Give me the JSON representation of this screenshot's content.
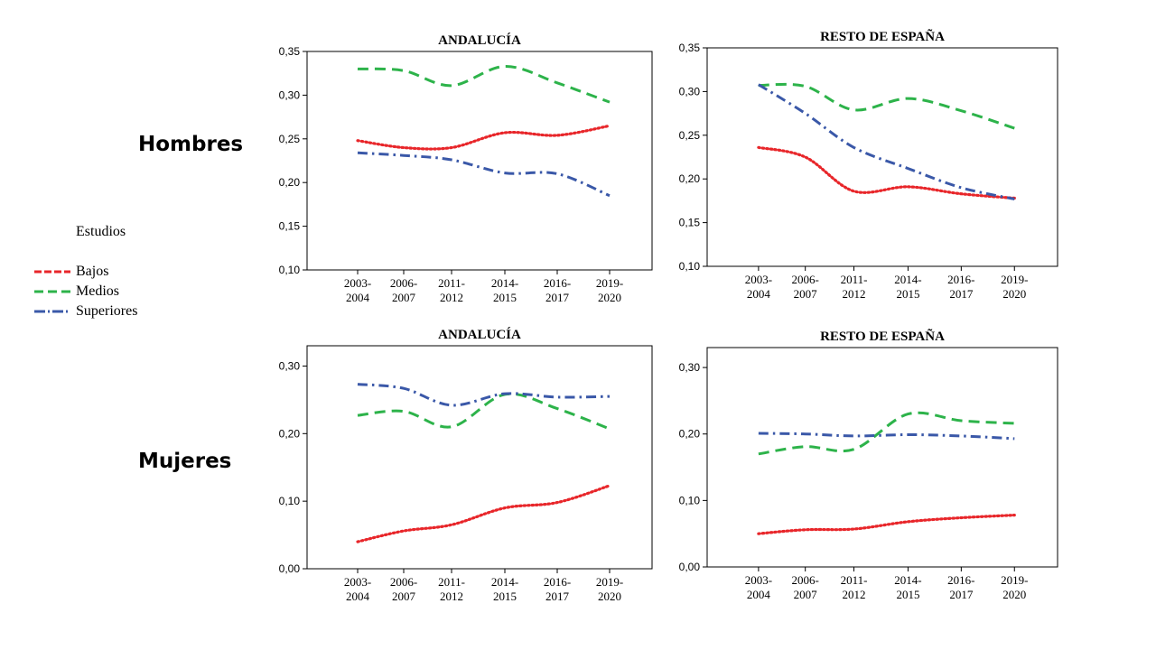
{
  "row_labels": [
    "Hombres",
    "Mujeres"
  ],
  "legend": {
    "title": "Estudios",
    "position": "left",
    "items": [
      {
        "label": "Bajos",
        "color": "#e8262a",
        "dash": "dotted"
      },
      {
        "label": "Medios",
        "color": "#2db34a",
        "dash": "dashed"
      },
      {
        "label": "Superiores",
        "color": "#3a58a8",
        "dash": "dash-dot"
      }
    ]
  },
  "chart_data": [
    {
      "type": "line",
      "title": "ANDALUCÍA",
      "categories": [
        [
          "2003-",
          "2004"
        ],
        [
          "2006-",
          "2007"
        ],
        [
          "2011-",
          "2012"
        ],
        [
          "2014-",
          "2015"
        ],
        [
          "2016-",
          "2017"
        ],
        [
          "2019-",
          "2020"
        ]
      ],
      "ylim": [
        0.1,
        0.35
      ],
      "yticks": [
        "0,10",
        "0,15",
        "0,20",
        "0,25",
        "0,30",
        "0,35"
      ],
      "grid": false,
      "series": [
        {
          "name": "Bajos",
          "values": [
            0.248,
            0.24,
            0.24,
            0.257,
            0.254,
            0.265
          ]
        },
        {
          "name": "Medios",
          "values": [
            0.33,
            0.328,
            0.311,
            0.333,
            0.314,
            0.292
          ]
        },
        {
          "name": "Superiores",
          "values": [
            0.234,
            0.231,
            0.226,
            0.211,
            0.21,
            0.185
          ]
        }
      ]
    },
    {
      "type": "line",
      "title": "RESTO DE ESPAÑA",
      "categories": [
        [
          "2003-",
          "2004"
        ],
        [
          "2006-",
          "2007"
        ],
        [
          "2011-",
          "2012"
        ],
        [
          "2014-",
          "2015"
        ],
        [
          "2016-",
          "2017"
        ],
        [
          "2019-",
          "2020"
        ]
      ],
      "ylim": [
        0.1,
        0.35
      ],
      "yticks": [
        "0,10",
        "0,15",
        "0,20",
        "0,25",
        "0,30",
        "0,35"
      ],
      "grid": false,
      "series": [
        {
          "name": "Bajos",
          "values": [
            0.236,
            0.225,
            0.186,
            0.191,
            0.183,
            0.178
          ]
        },
        {
          "name": "Medios",
          "values": [
            0.307,
            0.306,
            0.279,
            0.292,
            0.278,
            0.258
          ]
        },
        {
          "name": "Superiores",
          "values": [
            0.308,
            0.275,
            0.236,
            0.212,
            0.19,
            0.177
          ]
        }
      ]
    },
    {
      "type": "line",
      "title": "ANDALUCÍA",
      "categories": [
        [
          "2003-",
          "2004"
        ],
        [
          "2006-",
          "2007"
        ],
        [
          "2011-",
          "2012"
        ],
        [
          "2014-",
          "2015"
        ],
        [
          "2016-",
          "2017"
        ],
        [
          "2019-",
          "2020"
        ]
      ],
      "ylim": [
        0.0,
        0.33
      ],
      "yticks": [
        "0,00",
        "0,10",
        "0,20",
        "0,30"
      ],
      "grid": false,
      "series": [
        {
          "name": "Bajos",
          "values": [
            0.04,
            0.056,
            0.065,
            0.09,
            0.098,
            0.123
          ]
        },
        {
          "name": "Medios",
          "values": [
            0.227,
            0.233,
            0.21,
            0.258,
            0.237,
            0.207
          ]
        },
        {
          "name": "Superiores",
          "values": [
            0.273,
            0.267,
            0.242,
            0.259,
            0.254,
            0.255
          ]
        }
      ]
    },
    {
      "type": "line",
      "title": "RESTO DE ESPAÑA",
      "categories": [
        [
          "2003-",
          "2004"
        ],
        [
          "2006-",
          "2007"
        ],
        [
          "2011-",
          "2012"
        ],
        [
          "2014-",
          "2015"
        ],
        [
          "2016-",
          "2017"
        ],
        [
          "2019-",
          "2020"
        ]
      ],
      "ylim": [
        0.0,
        0.33
      ],
      "yticks": [
        "0,00",
        "0,10",
        "0,20",
        "0,30"
      ],
      "grid": false,
      "series": [
        {
          "name": "Bajos",
          "values": [
            0.05,
            0.056,
            0.057,
            0.068,
            0.074,
            0.078
          ]
        },
        {
          "name": "Medios",
          "values": [
            0.17,
            0.181,
            0.177,
            0.23,
            0.22,
            0.216
          ]
        },
        {
          "name": "Superiores",
          "values": [
            0.201,
            0.2,
            0.197,
            0.199,
            0.197,
            0.193
          ]
        }
      ]
    }
  ]
}
